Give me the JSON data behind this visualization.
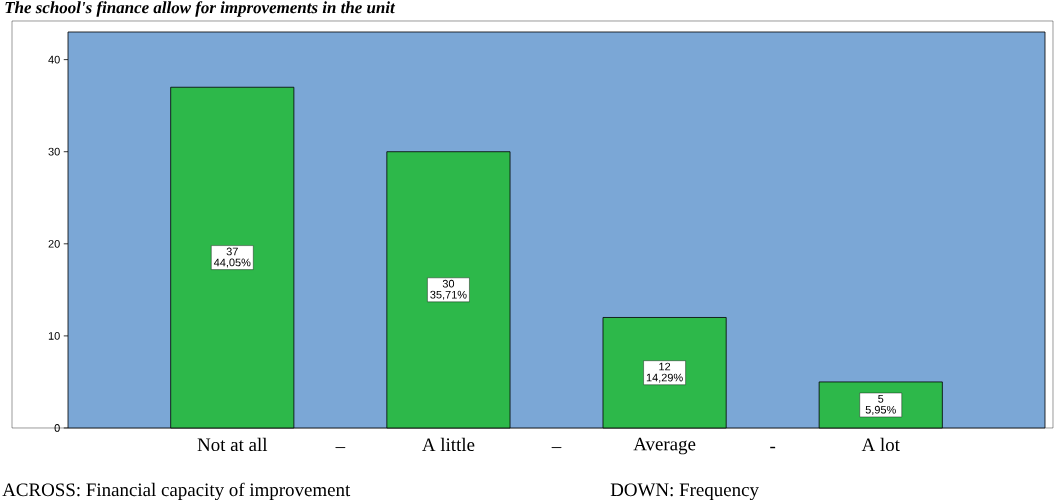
{
  "chart_data": {
    "type": "bar",
    "title": "The school's finance allow for improvements in the unit",
    "categories": [
      "Not at all",
      "A little",
      "Average",
      "A lot"
    ],
    "values": [
      37,
      30,
      12,
      5
    ],
    "value_labels": [
      "37 44,05%",
      "30 35,71%",
      "12 14,29%",
      "5 5,95%"
    ],
    "color": "#2db84a",
    "ylim": [
      0,
      43
    ],
    "yticks": [
      0,
      10,
      20,
      30,
      40
    ],
    "grid": false,
    "annotations": [
      "–",
      "–",
      "-",
      "ACROSS: Financial capacity of improvement",
      "DOWN: Frequency"
    ]
  }
}
